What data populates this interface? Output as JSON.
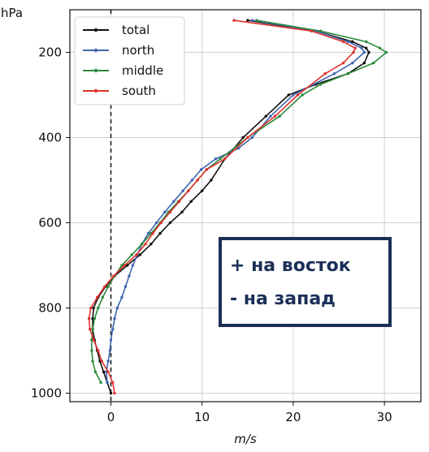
{
  "chart_data": {
    "type": "line",
    "title": "",
    "xlabel": "m/s",
    "ylabel": "hPa",
    "xlim": [
      -4.5,
      34
    ],
    "ylim": [
      1020,
      100
    ],
    "y_inverted": true,
    "grid": true,
    "legend_position": "top-left",
    "x_ticks": [
      "0",
      "10",
      "20",
      "30"
    ],
    "y_ticks": [
      "200",
      "400",
      "600",
      "800",
      "1000"
    ],
    "x_tick_values": [
      0,
      10,
      20,
      30
    ],
    "y_tick_values": [
      200,
      400,
      600,
      800,
      1000
    ],
    "zero_reference_line": {
      "x": 0,
      "style": "dashed",
      "color": "#111111"
    },
    "annotation": {
      "lines": [
        "+ на восток",
        "- на запад"
      ],
      "border_color": "#1b2f57",
      "text_color": "#1b2f57"
    },
    "series": [
      {
        "name": "total",
        "color": "#111111",
        "x": [
          15.0,
          22.5,
          26.5,
          28.0,
          28.3,
          27.8,
          26.0,
          22.5,
          19.5,
          17.0,
          14.5,
          12.5,
          11.0,
          10.0,
          8.8,
          7.8,
          6.5,
          5.4,
          4.4,
          3.2,
          1.8,
          0.4,
          -0.6,
          -1.4,
          -1.9,
          -2.0,
          -2.0,
          -1.8,
          -1.5,
          -1.2,
          -0.8,
          -0.4,
          0.0
        ],
        "y": [
          125,
          150,
          175,
          190,
          200,
          225,
          250,
          275,
          300,
          350,
          400,
          450,
          500,
          525,
          550,
          575,
          600,
          625,
          650,
          675,
          700,
          725,
          750,
          775,
          800,
          825,
          850,
          875,
          900,
          925,
          950,
          975,
          1000
        ]
      },
      {
        "name": "north",
        "color": "#3f66b0",
        "x": [
          15.5,
          22.5,
          26.0,
          27.5,
          27.8,
          26.5,
          24.5,
          20.0,
          17.5,
          15.5,
          14.0,
          11.5,
          9.9,
          8.9,
          7.9,
          6.9,
          5.9,
          5.0,
          4.1,
          3.4,
          2.9,
          2.4,
          2.0,
          1.6,
          1.2,
          0.7,
          0.4,
          0.2,
          0.0,
          -0.1,
          -0.3,
          -0.5,
          -0.4
        ],
        "y": [
          125,
          150,
          175,
          190,
          200,
          225,
          250,
          300,
          350,
          400,
          425,
          450,
          475,
          500,
          525,
          550,
          575,
          600,
          625,
          650,
          675,
          700,
          725,
          750,
          775,
          800,
          825,
          850,
          875,
          900,
          925,
          950,
          975
        ]
      },
      {
        "name": "middle",
        "color": "#2a8a3a",
        "x": [
          16.0,
          23.0,
          28.0,
          29.5,
          30.2,
          28.8,
          26.0,
          23.0,
          21.0,
          18.5,
          15.0,
          12.0,
          10.5,
          9.5,
          8.5,
          7.4,
          6.3,
          5.4,
          4.4,
          3.4,
          2.3,
          1.2,
          0.4,
          -0.3,
          -0.9,
          -1.4,
          -1.8,
          -2.0,
          -2.1,
          -2.1,
          -2.0,
          -1.7,
          -1.1
        ],
        "y": [
          125,
          150,
          175,
          190,
          200,
          225,
          250,
          275,
          300,
          350,
          400,
          450,
          475,
          500,
          525,
          550,
          575,
          600,
          625,
          650,
          675,
          700,
          725,
          750,
          775,
          800,
          825,
          850,
          875,
          900,
          925,
          950,
          975
        ]
      },
      {
        "name": "south",
        "color": "#e0322d",
        "x": [
          13.5,
          22.0,
          25.5,
          26.8,
          26.6,
          25.5,
          23.5,
          20.5,
          18.0,
          15.0,
          12.5,
          10.5,
          9.5,
          8.5,
          7.5,
          6.5,
          5.5,
          4.6,
          3.8,
          2.8,
          1.5,
          0.3,
          -0.7,
          -1.5,
          -2.2,
          -2.4,
          -2.3,
          -1.9,
          -1.4,
          -1.0,
          -0.3,
          0.2,
          0.4
        ],
        "y": [
          125,
          150,
          175,
          190,
          200,
          225,
          250,
          300,
          350,
          400,
          450,
          475,
          500,
          525,
          550,
          575,
          600,
          625,
          650,
          675,
          700,
          725,
          750,
          775,
          800,
          825,
          850,
          875,
          900,
          925,
          950,
          975,
          1000
        ]
      }
    ]
  }
}
